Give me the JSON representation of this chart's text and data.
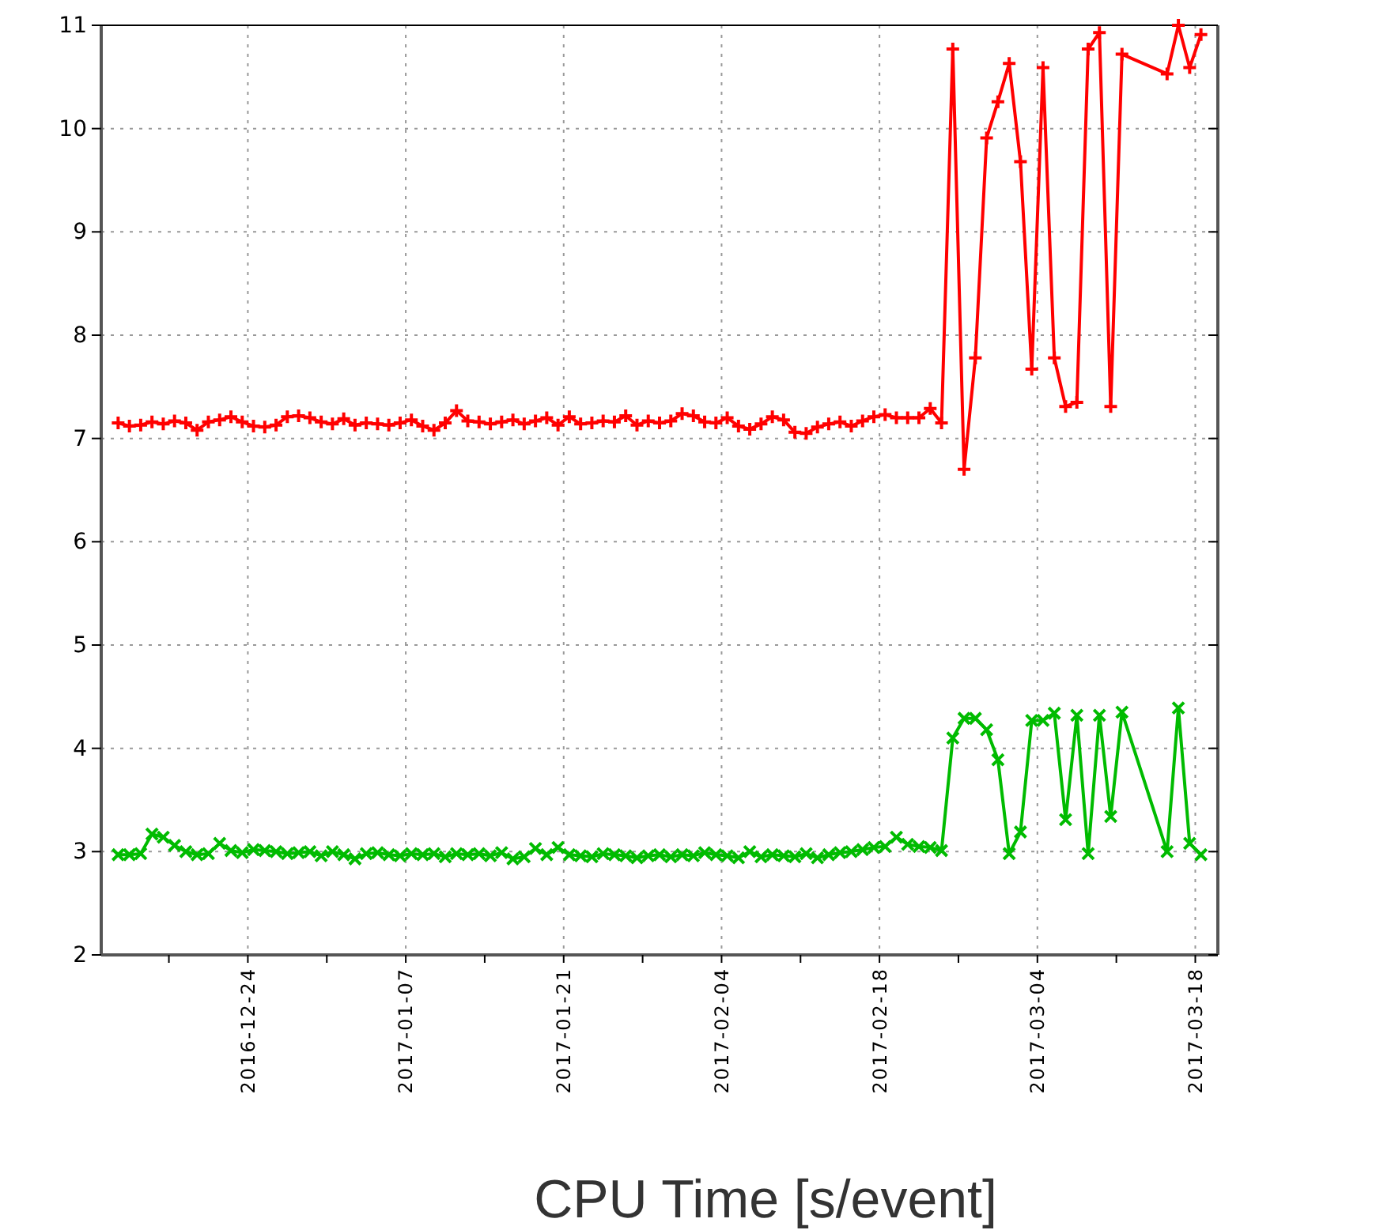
{
  "chart_data": {
    "type": "line",
    "xlabel": "CPU Time [s/event]",
    "xlim": [
      "2016-12-11",
      "2017-03-20"
    ],
    "ylim": [
      2,
      11
    ],
    "yticks": [
      2,
      3,
      4,
      5,
      6,
      7,
      8,
      9,
      10,
      11
    ],
    "xticks": [
      {
        "value": "2016-12-17",
        "label": null
      },
      {
        "value": "2016-12-24",
        "label": "2016-12-24"
      },
      {
        "value": "2016-12-31",
        "label": null
      },
      {
        "value": "2017-01-07",
        "label": "2017-01-07"
      },
      {
        "value": "2017-01-14",
        "label": null
      },
      {
        "value": "2017-01-21",
        "label": "2017-01-21"
      },
      {
        "value": "2017-01-28",
        "label": null
      },
      {
        "value": "2017-02-04",
        "label": "2017-02-04"
      },
      {
        "value": "2017-02-11",
        "label": null
      },
      {
        "value": "2017-02-18",
        "label": "2017-02-18"
      },
      {
        "value": "2017-02-25",
        "label": null
      },
      {
        "value": "2017-03-04",
        "label": "2017-03-04"
      },
      {
        "value": "2017-03-11",
        "label": null
      },
      {
        "value": "2017-03-18",
        "label": "2017-03-18"
      }
    ],
    "grid": true,
    "line_style": "solid",
    "series": [
      {
        "color": "#ff0000",
        "marker": "plus",
        "values": [
          7.15,
          7.12,
          7.13,
          7.16,
          7.14,
          7.17,
          7.15,
          7.08,
          7.16,
          7.18,
          7.21,
          7.16,
          7.12,
          7.11,
          7.13,
          7.21,
          7.22,
          7.2,
          7.16,
          7.14,
          7.19,
          7.13,
          7.15,
          7.14,
          7.13,
          7.15,
          7.18,
          7.12,
          7.08,
          7.15,
          7.27,
          7.17,
          7.16,
          7.14,
          7.16,
          7.18,
          7.14,
          7.17,
          7.2,
          7.13,
          7.21,
          7.14,
          7.15,
          7.17,
          7.16,
          7.22,
          7.13,
          7.17,
          7.15,
          7.17,
          7.24,
          7.22,
          7.16,
          7.15,
          7.2,
          7.12,
          7.09,
          7.14,
          7.21,
          7.18,
          7.06,
          7.05,
          7.11,
          7.14,
          7.16,
          7.12,
          7.17,
          7.21,
          7.23,
          7.2,
          7.2,
          7.2,
          7.29,
          7.15,
          10.77,
          6.7,
          7.78,
          9.91,
          10.26,
          10.63,
          9.68,
          7.67,
          10.59,
          7.78,
          7.31,
          7.35,
          10.77,
          10.93,
          7.31,
          10.72,
          10.53,
          11.0,
          10.59,
          10.91
        ]
      },
      {
        "color": "#00bb00",
        "marker": "cross",
        "values": [
          2.97,
          2.97,
          2.98,
          3.17,
          3.14,
          3.06,
          3.0,
          2.97,
          2.98,
          3.08,
          3.01,
          2.99,
          3.02,
          3.01,
          3.0,
          2.98,
          2.99,
          3.0,
          2.96,
          3.0,
          2.97,
          2.93,
          2.98,
          2.99,
          2.97,
          2.96,
          2.98,
          2.97,
          2.98,
          2.95,
          2.98,
          2.97,
          2.98,
          2.96,
          2.99,
          2.93,
          2.95,
          3.03,
          2.97,
          3.04,
          2.97,
          2.96,
          2.95,
          2.98,
          2.97,
          2.96,
          2.94,
          2.96,
          2.97,
          2.95,
          2.97,
          2.96,
          2.99,
          2.97,
          2.96,
          2.94,
          3.0,
          2.95,
          2.97,
          2.96,
          2.95,
          2.98,
          2.94,
          2.97,
          2.99,
          3.0,
          3.02,
          3.04,
          3.05,
          3.14,
          3.07,
          3.05,
          3.04,
          3.01,
          4.1,
          4.29,
          4.29,
          4.18,
          3.89,
          2.98,
          3.19,
          4.27,
          4.27,
          4.34,
          3.31,
          4.32,
          2.98,
          4.32,
          3.34,
          4.35,
          3.0,
          4.39,
          3.08,
          2.97
        ]
      }
    ],
    "x": [
      "2016-12-12T12:00",
      "2016-12-13T12:00",
      "2016-12-14T12:00",
      "2016-12-15T12:00",
      "2016-12-16T12:00",
      "2016-12-17T12:00",
      "2016-12-18T12:00",
      "2016-12-19T12:00",
      "2016-12-20T12:00",
      "2016-12-21T12:00",
      "2016-12-22T12:00",
      "2016-12-23T12:00",
      "2016-12-24T12:00",
      "2016-12-25T12:00",
      "2016-12-26T12:00",
      "2016-12-27T12:00",
      "2016-12-28T12:00",
      "2016-12-29T12:00",
      "2016-12-30T12:00",
      "2016-12-31T12:00",
      "2017-01-01T12:00",
      "2017-01-02T12:00",
      "2017-01-03T12:00",
      "2017-01-04T12:00",
      "2017-01-05T12:00",
      "2017-01-06T12:00",
      "2017-01-07T12:00",
      "2017-01-08T12:00",
      "2017-01-09T12:00",
      "2017-01-10T12:00",
      "2017-01-11T12:00",
      "2017-01-12T12:00",
      "2017-01-13T12:00",
      "2017-01-14T12:00",
      "2017-01-15T12:00",
      "2017-01-16T12:00",
      "2017-01-17T12:00",
      "2017-01-18T12:00",
      "2017-01-19T12:00",
      "2017-01-20T12:00",
      "2017-01-21T12:00",
      "2017-01-22T12:00",
      "2017-01-23T12:00",
      "2017-01-24T12:00",
      "2017-01-25T12:00",
      "2017-01-26T12:00",
      "2017-01-27T12:00",
      "2017-01-28T12:00",
      "2017-01-29T12:00",
      "2017-01-30T12:00",
      "2017-01-31T12:00",
      "2017-02-01T12:00",
      "2017-02-02T12:00",
      "2017-02-03T12:00",
      "2017-02-04T12:00",
      "2017-02-05T12:00",
      "2017-02-06T12:00",
      "2017-02-07T12:00",
      "2017-02-08T12:00",
      "2017-02-09T12:00",
      "2017-02-10T12:00",
      "2017-02-11T12:00",
      "2017-02-12T12:00",
      "2017-02-13T12:00",
      "2017-02-14T12:00",
      "2017-02-15T12:00",
      "2017-02-16T12:00",
      "2017-02-17T12:00",
      "2017-02-18T12:00",
      "2017-02-19T12:00",
      "2017-02-20T12:00",
      "2017-02-21T12:00",
      "2017-02-22T12:00",
      "2017-02-23T12:00",
      "2017-02-24T12:00",
      "2017-02-25T12:00",
      "2017-02-26T12:00",
      "2017-02-27T12:00",
      "2017-02-28T12:00",
      "2017-03-01T12:00",
      "2017-03-02T12:00",
      "2017-03-03T12:00",
      "2017-03-04T12:00",
      "2017-03-05T12:00",
      "2017-03-06T12:00",
      "2017-03-07T12:00",
      "2017-03-08T12:00",
      "2017-03-09T12:00",
      "2017-03-10T12:00",
      "2017-03-11T12:00",
      "2017-03-15T12:00",
      "2017-03-16T12:00",
      "2017-03-17T12:00",
      "2017-03-18T12:00"
    ]
  }
}
